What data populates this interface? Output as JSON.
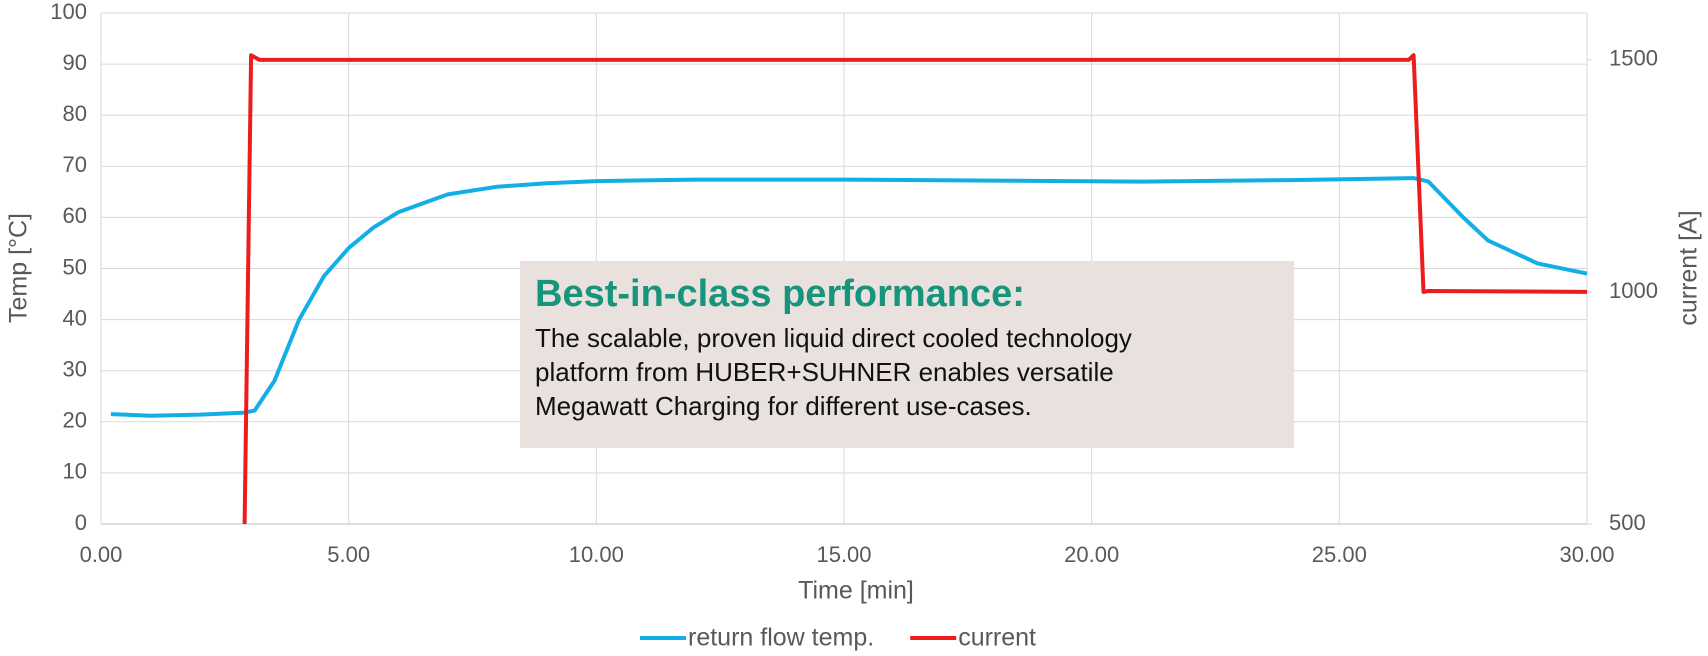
{
  "chart_data": {
    "type": "line",
    "xlabel": "Time [min]",
    "ylabel": "Temp [°C]",
    "y2label": "current [A]",
    "xlim": [
      0,
      30
    ],
    "xticks": [
      {
        "value": 0,
        "label": "0.00"
      },
      {
        "value": 5,
        "label": "5.00"
      },
      {
        "value": 10,
        "label": "10.00"
      },
      {
        "value": 15,
        "label": "15.00"
      },
      {
        "value": 20,
        "label": "20.00"
      },
      {
        "value": 25,
        "label": "25.00"
      },
      {
        "value": 30,
        "label": "30.00"
      }
    ],
    "ylim": [
      0,
      100
    ],
    "yticks": [
      0,
      10,
      20,
      30,
      40,
      50,
      60,
      70,
      80,
      90,
      100
    ],
    "y2lim": [
      500,
      1601
    ],
    "y2ticks": [
      500,
      1000,
      1500
    ],
    "grid": true,
    "legend": "bottom",
    "series": [
      {
        "name": "return flow temp.",
        "color": "#14aee6",
        "x": [
          0.2,
          1,
          2,
          2.9,
          3.1,
          3.5,
          4,
          4.5,
          5,
          5.5,
          6,
          7,
          8,
          9,
          10,
          12,
          15,
          18,
          21,
          24,
          26.5,
          26.8,
          27.5,
          28,
          29,
          30
        ],
        "values": [
          21.5,
          21.2,
          21.4,
          21.8,
          22.2,
          28,
          40,
          48.5,
          54,
          58,
          61,
          64.5,
          66,
          66.7,
          67.1,
          67.4,
          67.4,
          67.2,
          67,
          67.3,
          67.7,
          67,
          60,
          55.5,
          51,
          49
        ]
      },
      {
        "name": "current",
        "color": "#ee1c1c",
        "axis": "y2",
        "x": [
          2.9,
          3.03,
          3.2,
          26.4,
          26.5,
          26.7,
          26.8,
          30
        ],
        "values": [
          500,
          1510,
          1500,
          1500,
          1510,
          1000,
          1002,
          1000
        ]
      }
    ],
    "annotation": {
      "title": "Best-in-class performance:",
      "lines": [
        "The scalable, proven liquid direct cooled technology",
        "platform from HUBER+SUHNER enables versatile",
        "Megawatt Charging for different use-cases."
      ]
    }
  }
}
